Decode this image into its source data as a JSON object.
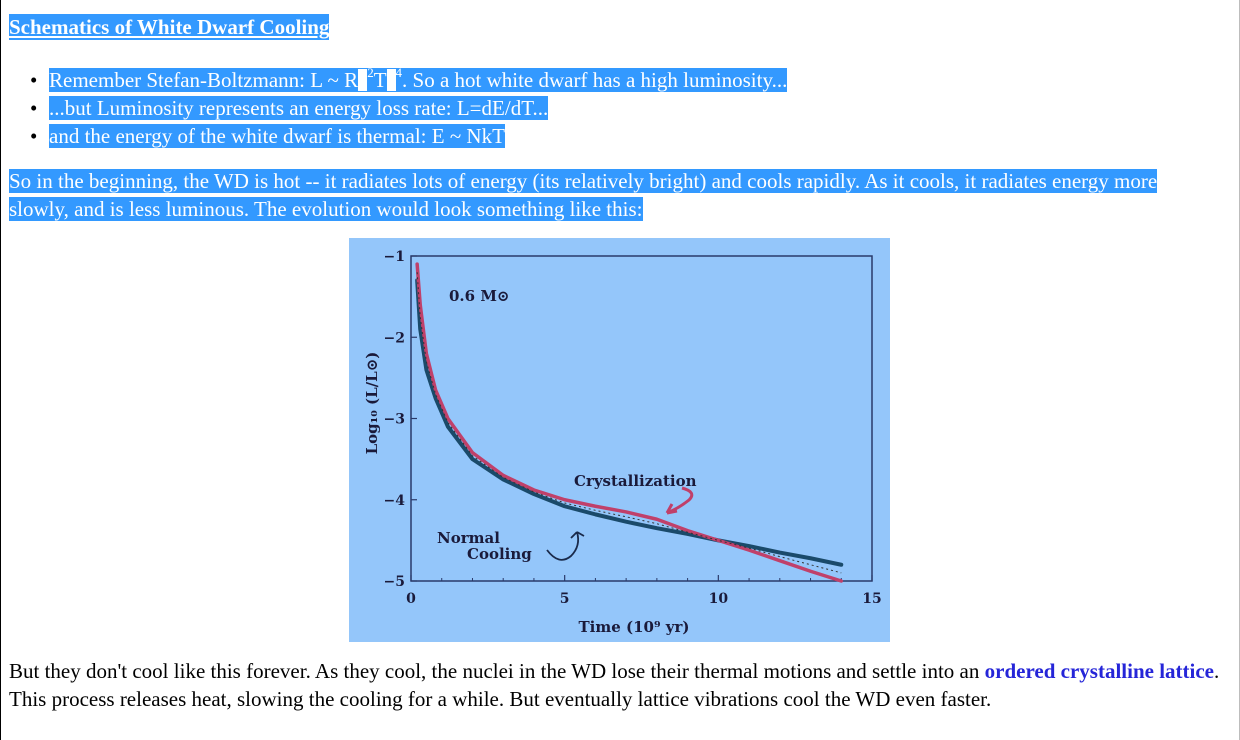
{
  "heading": "Schematics of White Dwarf Cooling",
  "bullets": [
    {
      "pre": "Remember Stefan-Boltzmann: L ~ R",
      "sup1": "2",
      "mid": "T",
      "sup2": "4",
      "post": ". So a hot white dwarf has a high luminosity..."
    },
    {
      "text": "...but Luminosity represents an energy loss rate: L=dE/dT..."
    },
    {
      "text": "and the energy of the white dwarf is thermal: E ~ NkT"
    }
  ],
  "bullet_symbol": "•",
  "para1": "So in the beginning, the WD is hot -- it radiates lots of energy (its relatively bright) and cools rapidly. As it cools, it radiates energy more slowly, and is less luminous. The evolution would look something like this:",
  "para2": {
    "before": "But they don't cool like this forever. As they cool, the nuclei in the WD lose their thermal motions and settle into an ",
    "link": "ordered crystalline lattice",
    "after": ". This process releases heat, slowing the cooling for a while. But eventually lattice vibrations cool the WD even faster."
  },
  "colors": {
    "selection": "#3399ff",
    "figure_bg": "#94c6fa",
    "normal_curve": "#1a4a6a",
    "crystal_curve": "#c0406a",
    "link": "#2525d8"
  },
  "chart_data": {
    "type": "line",
    "title": "",
    "annotation_mass": "0.6 M⊙",
    "annotation_crystal": "Crystallization",
    "annotation_normal_line1": "Normal",
    "annotation_normal_line2": "Cooling",
    "xlabel": "Time (10⁹ yr)",
    "ylabel": "Log₁₀ (L/L⊙)",
    "xlim": [
      0,
      15
    ],
    "ylim": [
      -5,
      -1
    ],
    "xticks": [
      "0",
      "5",
      "10",
      "15"
    ],
    "yticks": [
      "−1",
      "−2",
      "−3",
      "−4",
      "−5"
    ],
    "series": [
      {
        "name": "Normal Cooling",
        "x": [
          0.2,
          0.3,
          0.5,
          0.8,
          1.2,
          2,
          3,
          4,
          5,
          6,
          7,
          8,
          9,
          10,
          11,
          12,
          13,
          14
        ],
        "y": [
          -1.3,
          -1.9,
          -2.4,
          -2.75,
          -3.1,
          -3.5,
          -3.75,
          -3.93,
          -4.08,
          -4.18,
          -4.27,
          -4.35,
          -4.42,
          -4.5,
          -4.57,
          -4.65,
          -4.72,
          -4.8
        ]
      },
      {
        "name": "Crystallization",
        "x": [
          0.2,
          0.3,
          0.5,
          0.8,
          1.2,
          2,
          3,
          4,
          5,
          6,
          7,
          8,
          9,
          10,
          11,
          12,
          13,
          14
        ],
        "y": [
          -1.1,
          -1.6,
          -2.2,
          -2.65,
          -3.0,
          -3.42,
          -3.7,
          -3.88,
          -4.0,
          -4.08,
          -4.15,
          -4.24,
          -4.38,
          -4.5,
          -4.62,
          -4.75,
          -4.88,
          -5.0
        ]
      }
    ]
  }
}
